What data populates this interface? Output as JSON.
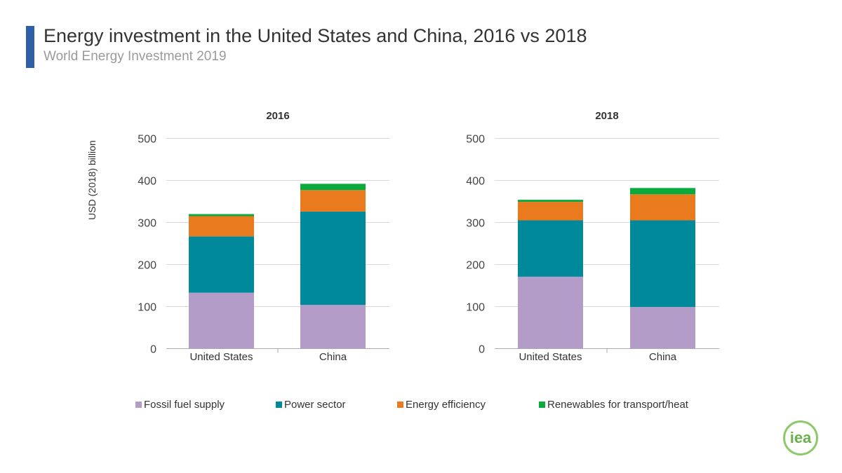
{
  "header": {
    "title": "Energy investment in the United States and China, 2016 vs 2018",
    "subtitle": "World Energy Investment 2019"
  },
  "logo": "iea",
  "chart_data": [
    {
      "type": "bar",
      "stacked": true,
      "title": "2016",
      "ylabel": "USD (2018) billion",
      "ylim": [
        0,
        500
      ],
      "yticks": [
        0,
        100,
        200,
        300,
        400,
        500
      ],
      "categories": [
        "United States",
        "China"
      ],
      "series": [
        {
          "name": "Fossil fuel supply",
          "color": "#b39dc8",
          "values": [
            133,
            104
          ]
        },
        {
          "name": "Power sector",
          "color": "#00889b",
          "values": [
            134,
            222
          ]
        },
        {
          "name": "Energy efficiency",
          "color": "#e97a1e",
          "values": [
            48,
            51
          ]
        },
        {
          "name": "Renewables for transport/heat",
          "color": "#0aaa3c",
          "values": [
            5,
            15
          ]
        }
      ]
    },
    {
      "type": "bar",
      "stacked": true,
      "title": "2018",
      "ylim": [
        0,
        500
      ],
      "yticks": [
        0,
        100,
        200,
        300,
        400,
        500
      ],
      "categories": [
        "United States",
        "China"
      ],
      "series": [
        {
          "name": "Fossil fuel supply",
          "color": "#b39dc8",
          "values": [
            171,
            99
          ]
        },
        {
          "name": "Power sector",
          "color": "#00889b",
          "values": [
            134,
            206
          ]
        },
        {
          "name": "Energy efficiency",
          "color": "#e97a1e",
          "values": [
            44,
            62
          ]
        },
        {
          "name": "Renewables for transport/heat",
          "color": "#0aaa3c",
          "values": [
            5,
            15
          ]
        }
      ]
    }
  ],
  "legend": [
    "Fossil fuel supply",
    "Power sector",
    "Energy efficiency",
    "Renewables for transport/heat"
  ]
}
